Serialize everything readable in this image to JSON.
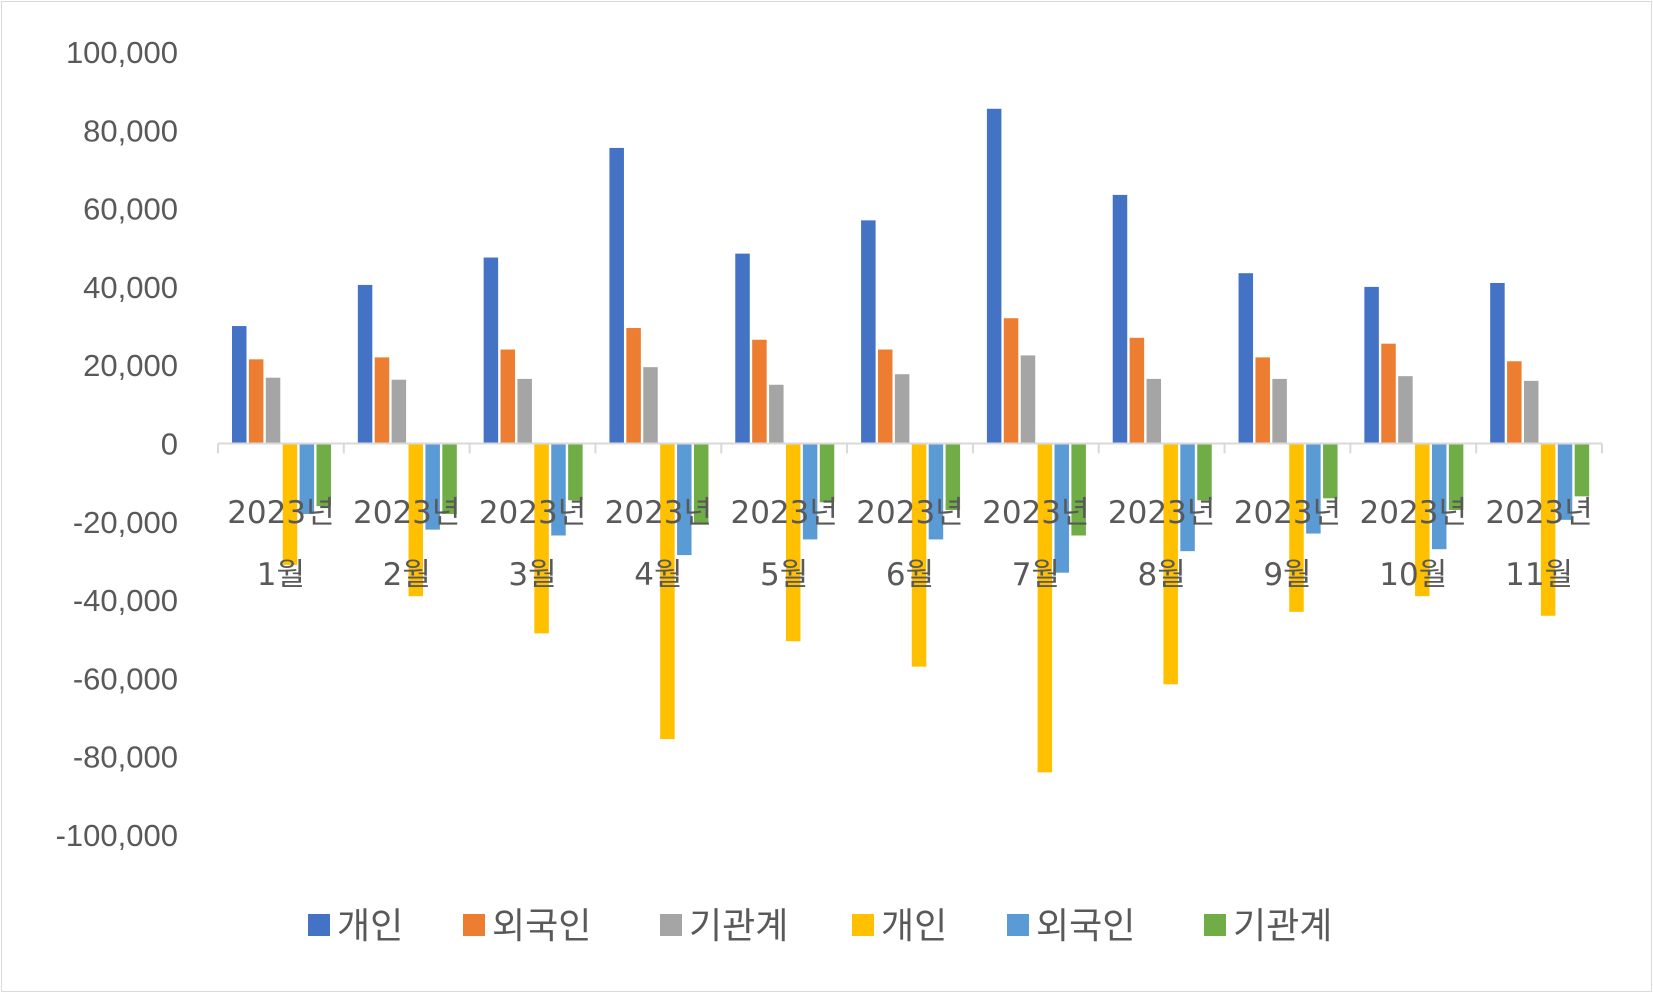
{
  "chart_data": {
    "type": "bar",
    "title": "",
    "xlabel": "",
    "ylabel": "",
    "ylim": [
      -100000,
      100000
    ],
    "y_ticks": [
      "100,000",
      "80,000",
      "60,000",
      "40,000",
      "20,000",
      "0",
      "-20,000",
      "-40,000",
      "-60,000",
      "-80,000",
      "-100,000"
    ],
    "y_tick_values": [
      100000,
      80000,
      60000,
      40000,
      20000,
      0,
      -20000,
      -40000,
      -60000,
      -80000,
      -100000
    ],
    "categories": [
      [
        "2023년",
        "1월"
      ],
      [
        "2023년",
        "2월"
      ],
      [
        "2023년",
        "3월"
      ],
      [
        "2023년",
        "4월"
      ],
      [
        "2023년",
        "5월"
      ],
      [
        "2023년",
        "6월"
      ],
      [
        "2023년",
        "7월"
      ],
      [
        "2023년",
        "8월"
      ],
      [
        "2023년",
        "9월"
      ],
      [
        "2023년",
        "10월"
      ],
      [
        "2023년",
        "11월"
      ]
    ],
    "grid": false,
    "legend_position": "bottom",
    "series": [
      {
        "name": "개인",
        "color": "#4472C4",
        "values": [
          30000,
          40500,
          47500,
          75500,
          48500,
          57000,
          85500,
          63500,
          43500,
          40000,
          41000
        ]
      },
      {
        "name": "외국인",
        "color": "#ED7D31",
        "values": [
          21500,
          22000,
          24000,
          29500,
          26500,
          24000,
          32000,
          27000,
          22000,
          25500,
          21000
        ]
      },
      {
        "name": "기관계",
        "color": "#A5A5A5",
        "values": [
          16800,
          16300,
          16500,
          19500,
          15000,
          17700,
          22500,
          16500,
          16500,
          17200,
          16000
        ]
      },
      {
        "name": "개인",
        "color": "#FFC000",
        "values": [
          -31000,
          -39000,
          -48500,
          -75500,
          -50500,
          -57000,
          -84000,
          -61500,
          -43000,
          -39000,
          -44000
        ]
      },
      {
        "name": "외국인",
        "color": "#5B9BD5",
        "values": [
          -18000,
          -22000,
          -23500,
          -28500,
          -24500,
          -24500,
          -33000,
          -27500,
          -23000,
          -27000,
          -19500
        ]
      },
      {
        "name": "기관계",
        "color": "#70AD47",
        "values": [
          -16000,
          -18000,
          -14500,
          -20500,
          -15000,
          -17000,
          -23500,
          -14500,
          -14000,
          -17000,
          -13500
        ]
      }
    ]
  }
}
